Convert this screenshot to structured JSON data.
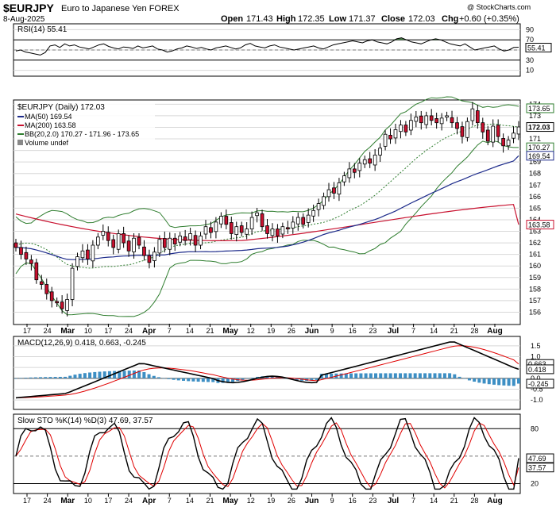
{
  "header": {
    "symbol": "$EURJPY",
    "name": "Euro to Japanese Yen FOREX",
    "date": "8-Aug-2025",
    "open_label": "Open",
    "open": "171.43",
    "high_label": "High",
    "high": "172.35",
    "low_label": "Low",
    "low": "171.37",
    "close_label": "Close",
    "close": "172.03",
    "chg_label": "Chg",
    "chg": "+0.60 (+0.35%)",
    "watermark": "@ StockCharts.com"
  },
  "colors": {
    "up": "#ffffff",
    "down": "#c8102e",
    "ma50": "#1c2a8a",
    "ma200": "#c8102e",
    "bb": "#2e7d2e",
    "bb_mid": "#2e7d2e",
    "macd": "#000000",
    "signal": "#e00000",
    "hist": "#3d8fc4",
    "rsi_fill": "#3a7a3a",
    "grid": "#d8d8d8"
  },
  "x_labels": [
    "17",
    "24",
    "Mar",
    "10",
    "17",
    "24",
    "Apr",
    "7",
    "14",
    "21",
    "May",
    "12",
    "19",
    "26",
    "Jun",
    "9",
    "16",
    "23",
    "Jul",
    "7",
    "14",
    "21",
    "28",
    "Aug"
  ],
  "chart_data": [
    {
      "type": "line",
      "panel": "rsi",
      "title": "RSI(14) 55.41",
      "value": 55.41,
      "levels": [
        70,
        30
      ],
      "y_ticks": [
        90,
        70,
        50,
        30,
        10
      ],
      "ylim": [
        0,
        100
      ],
      "values": [
        48,
        50,
        46,
        44,
        42,
        40,
        45,
        58,
        60,
        55,
        62,
        58,
        60,
        56,
        54,
        52,
        56,
        60,
        62,
        57,
        54,
        52,
        56,
        55,
        53,
        58,
        54,
        56,
        58,
        52,
        50,
        46,
        48,
        52,
        54,
        58,
        56,
        53,
        55,
        52,
        50,
        54,
        56,
        58,
        55,
        52,
        54,
        60,
        63,
        58,
        56,
        54,
        58,
        60,
        56,
        54,
        52,
        50,
        52,
        54,
        56,
        58,
        54,
        52,
        56,
        60,
        62,
        64,
        66,
        68,
        66,
        64,
        68,
        70,
        66,
        64,
        62,
        66,
        72,
        74,
        70,
        66,
        64,
        62,
        66,
        70,
        72,
        70,
        66,
        62,
        60,
        58,
        62,
        56,
        50,
        52,
        54,
        56,
        58,
        52,
        48,
        50,
        55,
        55.41
      ]
    },
    {
      "type": "candlestick",
      "panel": "price",
      "title": "$EURJPY (Daily) 172.03",
      "legend": [
        {
          "label": "MA(50) 169.54"
        },
        {
          "label": "MA(200) 163.58"
        },
        {
          "label": "BB(20,2.0) 170.27 - 171.96 - 173.65"
        },
        {
          "label": "Volume undef"
        }
      ],
      "y_ticks": [
        156,
        157,
        158,
        159,
        160,
        161,
        162,
        163,
        164,
        165,
        166,
        167,
        168,
        169,
        170,
        171,
        172,
        173,
        174
      ],
      "ylim": [
        155.0,
        174.3
      ],
      "value_tags": [
        {
          "label": "173.65",
          "value": 173.65,
          "style": "bb"
        },
        {
          "label": "172.03",
          "value": 172.03,
          "style": "close"
        },
        {
          "label": "170.27",
          "value": 170.27,
          "style": "bb"
        },
        {
          "label": "169.54",
          "value": 169.54,
          "style": "ma50"
        },
        {
          "label": "163.58",
          "value": 163.58,
          "style": "ma200"
        }
      ],
      "close": [
        161.6,
        161.0,
        160.6,
        160.2,
        158.8,
        158.4,
        157.6,
        157.0,
        156.8,
        156.3,
        157.1,
        159.8,
        160.8,
        161.3,
        160.6,
        161.8,
        162.5,
        163.0,
        162.2,
        161.6,
        162.8,
        162.0,
        161.3,
        162.4,
        161.8,
        160.9,
        160.3,
        161.2,
        162.3,
        161.6,
        162.4,
        161.9,
        162.6,
        162.2,
        162.8,
        161.8,
        162.6,
        163.4,
        162.9,
        163.8,
        164.3,
        163.6,
        162.8,
        163.4,
        162.9,
        163.2,
        164.2,
        164.6,
        163.4,
        162.8,
        163.2,
        162.6,
        163.4,
        163.2,
        163.8,
        164.2,
        163.6,
        164.4,
        164.8,
        165.4,
        166.0,
        166.6,
        166.3,
        167.2,
        167.8,
        168.4,
        168.1,
        168.9,
        169.2,
        168.9,
        169.6,
        170.2,
        171.4,
        171.0,
        171.8,
        172.2,
        171.6,
        172.6,
        172.9,
        172.4,
        173.0,
        172.6,
        172.4,
        172.8,
        173.0,
        172.4,
        171.9,
        171.2,
        172.5,
        173.6,
        172.4,
        171.6,
        170.8,
        172.1,
        171.2,
        170.4,
        170.9,
        171.5,
        172.03
      ],
      "ma50_end": 169.54,
      "ma200_end": 163.58,
      "bb_upper_end": 173.65,
      "bb_mid_end": 171.96,
      "bb_lower_end": 170.27
    },
    {
      "type": "line",
      "panel": "macd",
      "title": "MACD(12,26,9) 0.418, 0.663, -0.245",
      "macd": 0.418,
      "signal": 0.663,
      "histogram": -0.245,
      "y_ticks": [
        1.5,
        1.0,
        0.5,
        0.0,
        -0.5,
        -1.0
      ],
      "ylim": [
        -1.4,
        1.9
      ],
      "value_tags": [
        {
          "label": "0.663",
          "value": 0.663
        },
        {
          "label": "0.418",
          "value": 0.418
        },
        {
          "label": "-0.245",
          "value": -0.245
        }
      ]
    },
    {
      "type": "line",
      "panel": "sto",
      "title": "Slow STO %K(14) %D(3) 47.69, 37.57",
      "k": 47.69,
      "d": 37.57,
      "levels": [
        80,
        20
      ],
      "y_ticks": [
        80,
        50,
        20
      ],
      "ylim": [
        10,
        95
      ],
      "value_tags": [
        {
          "label": "47.69",
          "value": 47.69
        },
        {
          "label": "37.57",
          "value": 37.57
        }
      ]
    }
  ]
}
